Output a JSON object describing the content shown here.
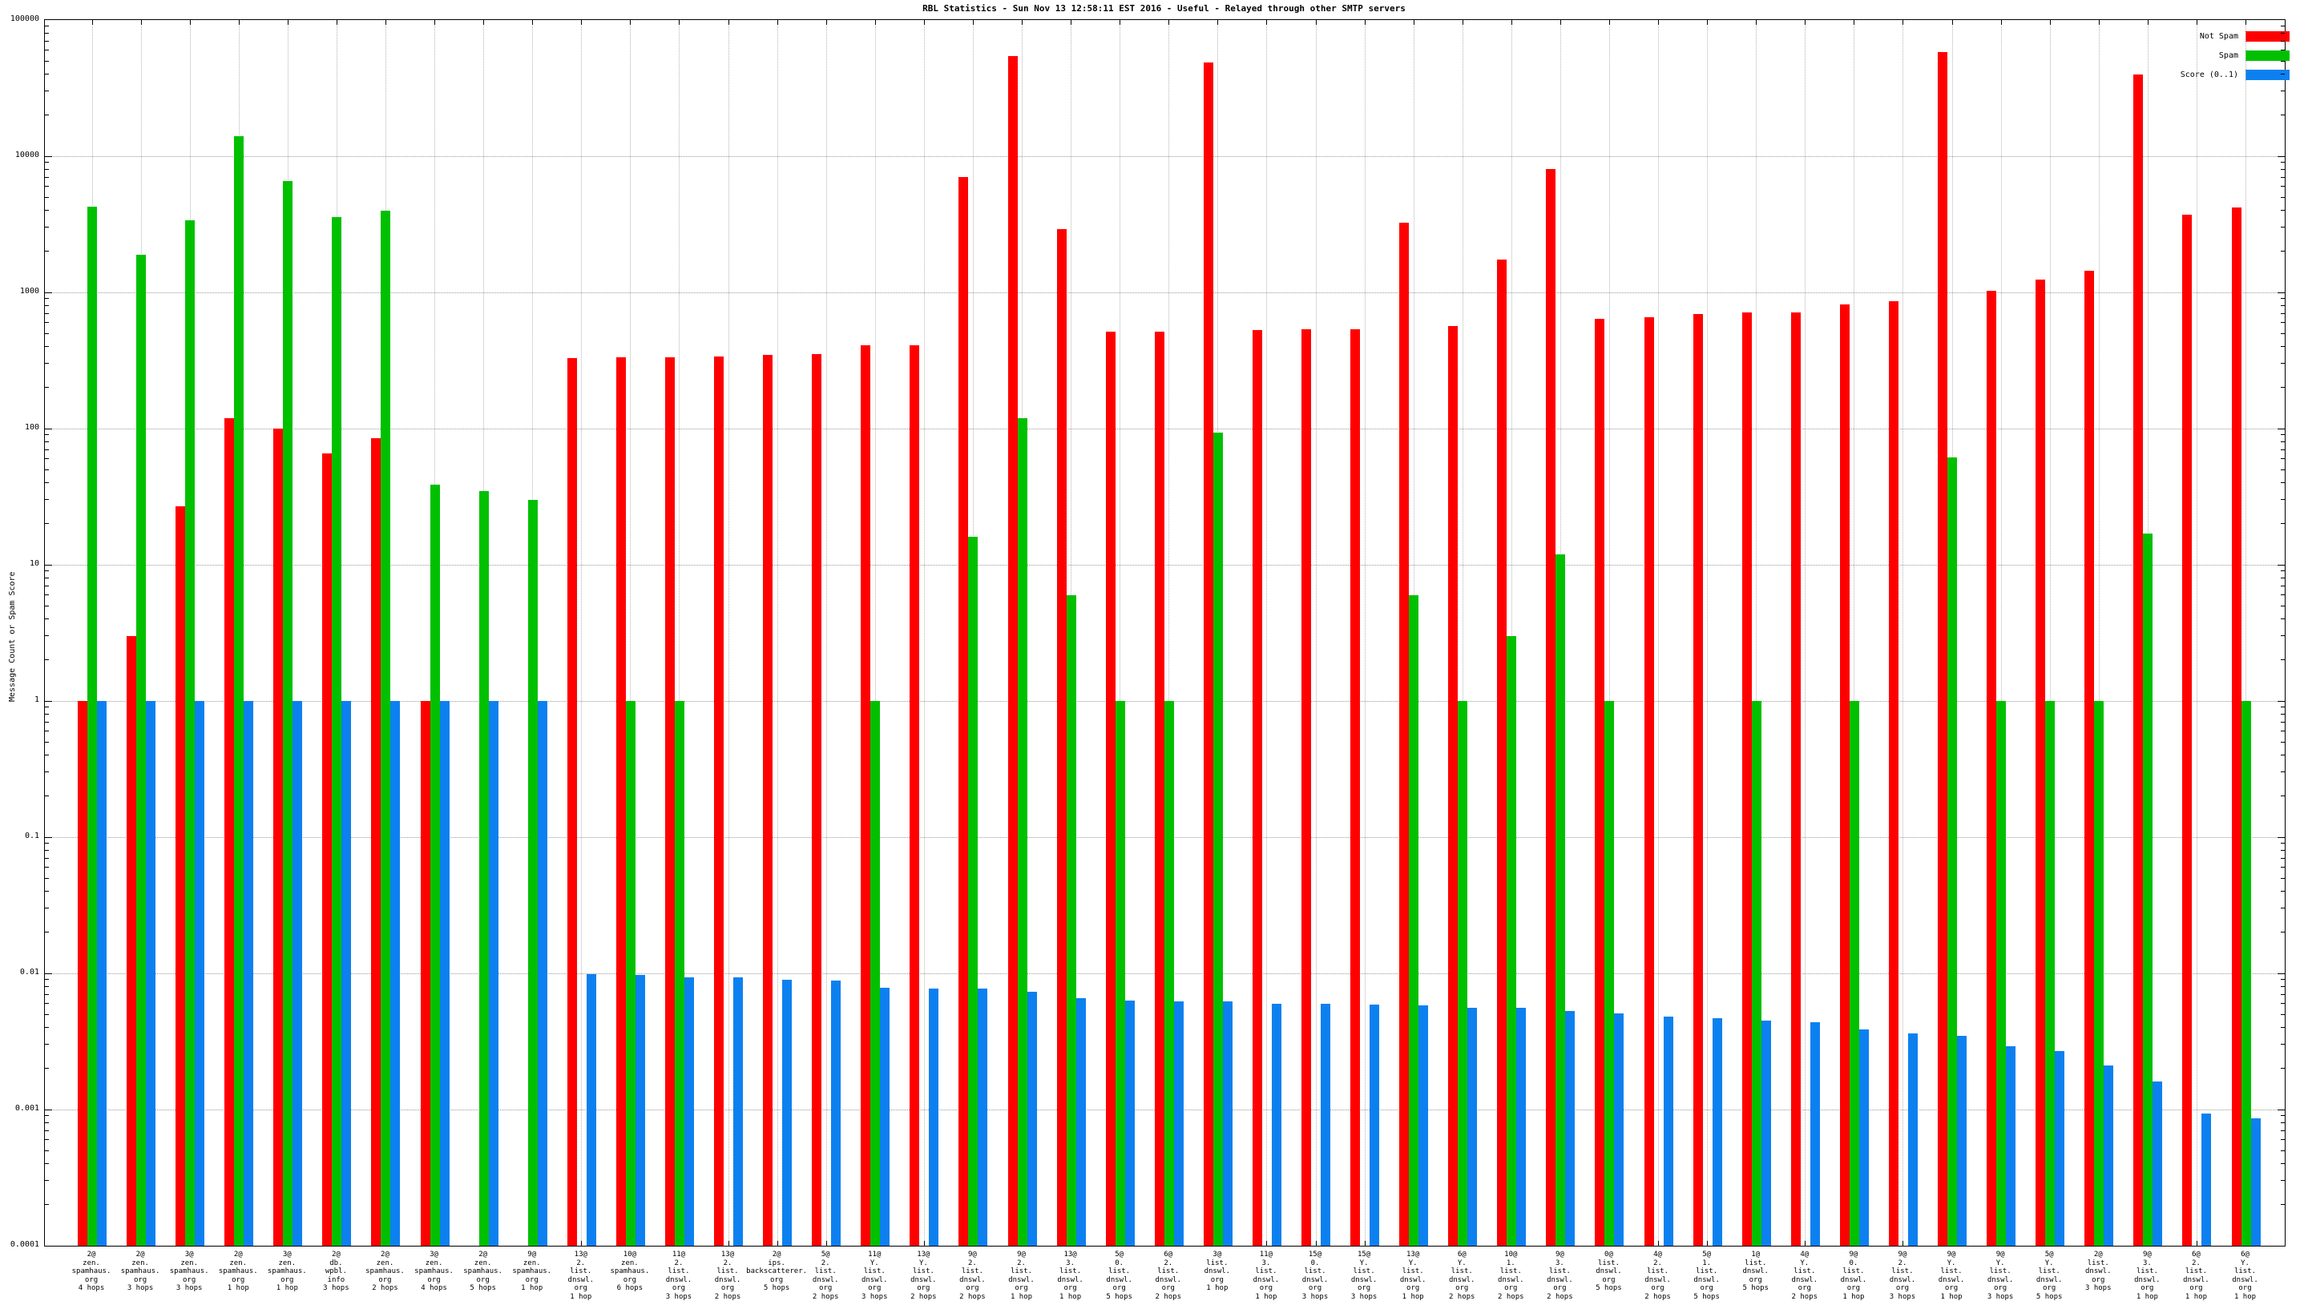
{
  "chart_data": {
    "type": "bar",
    "title": "RBL Statistics - Sun Nov 13 12:58:11 EST 2016 - Useful - Relayed through other SMTP servers",
    "xlabel": "",
    "ylabel": "Message Count or Spam Score",
    "y_scale": "log10",
    "ylim": [
      0.0001,
      100000
    ],
    "grid": true,
    "ytick_labels": [
      "100000",
      "10000",
      "1000",
      "100",
      "10",
      "1",
      "0.1",
      "0.01",
      "0.001",
      "0.0001"
    ],
    "legend": {
      "position": "top-right",
      "entries": [
        {
          "label": "Not Spam",
          "color": "#ff0000"
        },
        {
          "label": "Spam",
          "color": "#00c000"
        },
        {
          "label": "Score (0..1)",
          "color": "#0d80f0"
        }
      ]
    },
    "categories": [
      "2@\nzen.\nspamhaus.\norg\n4 hops",
      "2@\nzen.\nspamhaus.\norg\n3 hops",
      "3@\nzen.\nspamhaus.\norg\n3 hops",
      "2@\nzen.\nspamhaus.\norg\n1 hop",
      "3@\nzen.\nspamhaus.\norg\n1 hop",
      "2@\ndb.\nwpbl.\ninfo\n3 hops",
      "2@\nzen.\nspamhaus.\norg\n2 hops",
      "3@\nzen.\nspamhaus.\norg\n4 hops",
      "2@\nzen.\nspamhaus.\norg\n5 hops",
      "9@\nzen.\nspamhaus.\norg\n1 hop",
      "13@\n2.\nlist.\ndnswl.\norg\n1 hop",
      "10@\nzen.\nspamhaus.\norg\n6 hops",
      "11@\n2.\nlist.\ndnswl.\norg\n3 hops",
      "13@\n2.\nlist.\ndnswl.\norg\n2 hops",
      "2@\nips.\nbackscatterer.\norg\n5 hops",
      "5@\n2.\nlist.\ndnswl.\norg\n2 hops",
      "11@\nY.\nlist.\ndnswl.\norg\n3 hops",
      "13@\nY.\nlist.\ndnswl.\norg\n2 hops",
      "9@\n2.\nlist.\ndnswl.\norg\n2 hops",
      "9@\n2.\nlist.\ndnswl.\norg\n1 hop",
      "13@\n3.\nlist.\ndnswl.\norg\n1 hop",
      "5@\n0.\nlist.\ndnswl.\norg\n5 hops",
      "6@\n2.\nlist.\ndnswl.\norg\n2 hops",
      "3@\nlist.\ndnswl.\norg\n1 hop",
      "11@\n3.\nlist.\ndnswl.\norg\n1 hop",
      "15@\n0.\nlist.\ndnswl.\norg\n3 hops",
      "15@\nY.\nlist.\ndnswl.\norg\n3 hops",
      "13@\nY.\nlist.\ndnswl.\norg\n1 hop",
      "6@\nY.\nlist.\ndnswl.\norg\n2 hops",
      "10@\n1.\nlist.\ndnswl.\norg\n2 hops",
      "9@\n3.\nlist.\ndnswl.\norg\n2 hops",
      "0@\nlist.\ndnswl.\norg\n5 hops",
      "4@\n2.\nlist.\ndnswl.\norg\n2 hops",
      "5@\n1.\nlist.\ndnswl.\norg\n5 hops",
      "1@\nlist.\ndnswl.\norg\n5 hops",
      "4@\nY.\nlist.\ndnswl.\norg\n2 hops",
      "9@\n0.\nlist.\ndnswl.\norg\n1 hop",
      "9@\n2.\nlist.\ndnswl.\norg\n3 hops",
      "9@\nY.\nlist.\ndnswl.\norg\n1 hop",
      "9@\nY.\nlist.\ndnswl.\norg\n3 hops",
      "5@\nY.\nlist.\ndnswl.\norg\n5 hops",
      "2@\nlist.\ndnswl.\norg\n3 hops",
      "9@\n3.\nlist.\ndnswl.\norg\n1 hop",
      "6@\n2.\nlist.\ndnswl.\norg\n1 hop",
      "6@\nY.\nlist.\ndnswl.\norg\n1 hop"
    ],
    "series": [
      {
        "name": "Not Spam",
        "color": "#ff0000",
        "values": [
          1,
          3,
          27,
          120,
          100,
          66,
          85,
          1,
          null,
          null,
          330,
          335,
          335,
          340,
          350,
          352,
          410,
          410,
          7000,
          54000,
          2900,
          513,
          518,
          49000,
          532,
          535,
          538,
          3270,
          570,
          1750,
          8000,
          640,
          660,
          690,
          710,
          711,
          815,
          865,
          58000,
          1030,
          1240,
          1450,
          40000,
          3700,
          4200
        ]
      },
      {
        "name": "Spam",
        "color": "#00c000",
        "values": [
          4250,
          1900,
          3400,
          14000,
          6600,
          3550,
          4000,
          39,
          35,
          30,
          null,
          1,
          1,
          null,
          null,
          null,
          1,
          null,
          16,
          120,
          6,
          1,
          1,
          93,
          null,
          null,
          null,
          6,
          1,
          3,
          12,
          1,
          null,
          null,
          1,
          null,
          1,
          null,
          61,
          1,
          1,
          1,
          17,
          null,
          1
        ]
      },
      {
        "name": "Score (0..1)",
        "color": "#0d80f0",
        "values": [
          1,
          1,
          1,
          1,
          1,
          1,
          1,
          1,
          1,
          1,
          0.0099,
          0.0097,
          0.0094,
          0.0094,
          0.009,
          0.0088,
          0.0078,
          0.0077,
          0.0077,
          0.0073,
          0.0066,
          0.0063,
          0.0062,
          0.0062,
          0.006,
          0.006,
          0.0059,
          0.0058,
          0.0056,
          0.0056,
          0.0053,
          0.0051,
          0.0048,
          0.0047,
          0.0045,
          0.0044,
          0.0039,
          0.0036,
          0.0035,
          0.0029,
          0.0027,
          0.0021,
          0.0016,
          0.00093,
          0.00086
        ]
      }
    ]
  }
}
